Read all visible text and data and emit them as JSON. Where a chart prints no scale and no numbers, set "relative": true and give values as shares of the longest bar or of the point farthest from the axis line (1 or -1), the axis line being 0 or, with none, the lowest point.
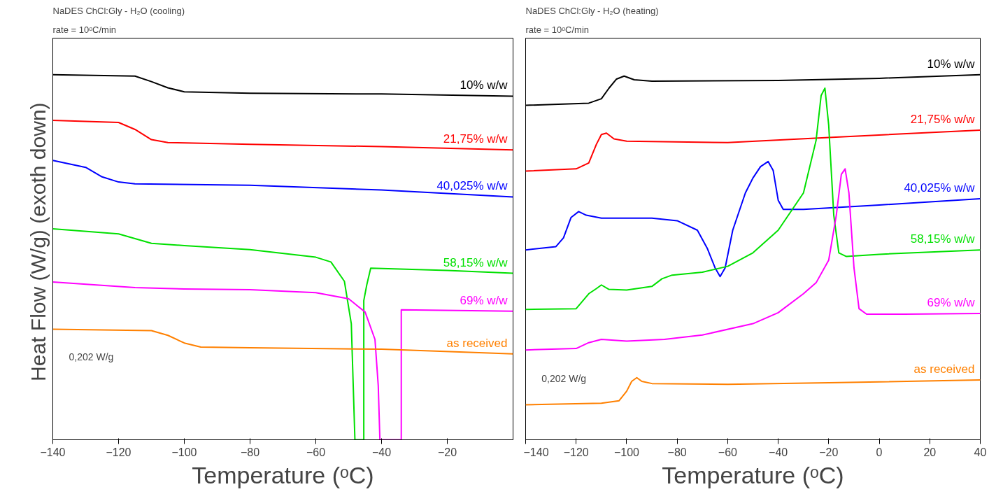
{
  "chart_data": [
    {
      "type": "line",
      "relative": true,
      "title": "NaDES ChCl:Gly - H₂O (cooling)",
      "subtitle": "rate = 10ᵒC/min",
      "xlabel": "Temperature (ᵒC)",
      "ylabel": "Heat Flow (W/g)  (exoth down)",
      "xlim": [
        -140,
        0
      ],
      "xticks": [
        -140,
        -120,
        -100,
        -80,
        -60,
        -40,
        -20
      ],
      "tick_labels": "x",
      "grid": false,
      "annotations": [
        "0,202 W/g"
      ],
      "series": [
        {
          "name": "10% w/w",
          "color": "#000000",
          "x": [
            -140,
            -115,
            -110,
            -105,
            -100,
            -80,
            -40,
            0
          ],
          "values": [
            1.0,
            0.996,
            0.981,
            0.964,
            0.953,
            0.949,
            0.947,
            0.941
          ]
        },
        {
          "name": "21,75% w/w",
          "color": "#ff0000",
          "x": [
            -140,
            -120,
            -115,
            -110,
            -105,
            -80,
            -40,
            0
          ],
          "values": [
            0.875,
            0.869,
            0.85,
            0.822,
            0.814,
            0.809,
            0.803,
            0.794
          ]
        },
        {
          "name": "40,025% w/w",
          "color": "#0000ff",
          "x": [
            -140,
            -130,
            -125,
            -120,
            -115,
            -80,
            -40,
            0
          ],
          "values": [
            0.765,
            0.746,
            0.72,
            0.706,
            0.701,
            0.697,
            0.684,
            0.665
          ]
        },
        {
          "name": "58,15% w/w",
          "color": "#00e000",
          "x": [
            -140,
            -120,
            -110,
            -100,
            -80,
            -60,
            -55.4,
            -51.3,
            -49.2,
            -48.1,
            -45.4,
            -45.4,
            -44.5,
            -43.3,
            -20,
            0
          ],
          "values": [
            0.578,
            0.564,
            0.538,
            0.532,
            0.521,
            0.5,
            0.487,
            0.434,
            0.318,
            0,
            0,
            0.381,
            0.424,
            0.47,
            0.464,
            0.456
          ]
        },
        {
          "name": "69% w/w",
          "color": "#ff00ff",
          "x": [
            -140,
            -115,
            -100,
            -80,
            -60,
            -50,
            -45,
            -42,
            -41,
            -40.5,
            -34,
            -34,
            0
          ],
          "values": [
            0.432,
            0.417,
            0.413,
            0.411,
            0.403,
            0.386,
            0.35,
            0.275,
            0.148,
            0,
            0,
            0.356,
            0.352
          ]
        },
        {
          "name": "as received",
          "color": "#ff8000",
          "x": [
            -140,
            -110,
            -105,
            -100,
            -95,
            -80,
            -40,
            0
          ],
          "values": [
            0.303,
            0.299,
            0.286,
            0.265,
            0.254,
            0.252,
            0.248,
            0.235
          ]
        }
      ]
    },
    {
      "type": "line",
      "relative": true,
      "title": "NaDES ChCl:Gly - H₂O (heating)",
      "subtitle": "rate = 10ᵒC/min",
      "xlabel": "Temperature (ᵒC)",
      "xlim": [
        -140,
        40
      ],
      "xticks": [
        -140,
        -120,
        -100,
        -80,
        -60,
        -40,
        -20,
        0,
        20,
        40
      ],
      "tick_labels": "x",
      "grid": false,
      "annotations": [
        "0,202 W/g"
      ],
      "series": [
        {
          "name": "10% w/w",
          "color": "#000000",
          "x": [
            -140,
            -115,
            -110,
            -107,
            -104,
            -101,
            -97,
            -90,
            -40,
            0,
            40
          ],
          "values": [
            0.916,
            0.922,
            0.934,
            0.963,
            0.988,
            0.996,
            0.986,
            0.982,
            0.984,
            0.99,
            1.0
          ]
        },
        {
          "name": "21,75% w/w",
          "color": "#ff0000",
          "x": [
            -140,
            -120,
            -115,
            -112,
            -110,
            -108,
            -105,
            -100,
            -60,
            -20,
            40
          ],
          "values": [
            0.736,
            0.742,
            0.758,
            0.809,
            0.836,
            0.84,
            0.824,
            0.818,
            0.814,
            0.828,
            0.848
          ]
        },
        {
          "name": "40,025% w/w",
          "color": "#0000ff",
          "x": [
            -140,
            -128,
            -125,
            -122,
            -119,
            -116,
            -110,
            -90,
            -80,
            -72,
            -68,
            -65,
            -63,
            -61,
            -58,
            -53,
            -50,
            -47,
            -44,
            -42,
            -40,
            -38,
            -30,
            0,
            40
          ],
          "values": [
            0.52,
            0.529,
            0.553,
            0.609,
            0.625,
            0.615,
            0.607,
            0.607,
            0.6,
            0.574,
            0.523,
            0.471,
            0.447,
            0.471,
            0.574,
            0.676,
            0.717,
            0.748,
            0.762,
            0.738,
            0.656,
            0.631,
            0.631,
            0.643,
            0.66
          ]
        },
        {
          "name": "58,15% w/w",
          "color": "#00e000",
          "x": [
            -140,
            -120,
            -115,
            -112,
            -110,
            -107,
            -100,
            -90,
            -86,
            -82,
            -70,
            -60,
            -50,
            -40,
            -30,
            -25,
            -23,
            -21.5,
            -20,
            -18,
            -16,
            -13,
            0,
            40
          ],
          "values": [
            0.357,
            0.359,
            0.4,
            0.414,
            0.424,
            0.412,
            0.41,
            0.42,
            0.441,
            0.451,
            0.459,
            0.475,
            0.512,
            0.574,
            0.676,
            0.82,
            0.943,
            0.963,
            0.861,
            0.615,
            0.512,
            0.502,
            0.508,
            0.52
          ]
        },
        {
          "name": "69% w/w",
          "color": "#ff00ff",
          "x": [
            -140,
            -120,
            -115,
            -110,
            -100,
            -85,
            -70,
            -50,
            -40,
            -30,
            -25,
            -20,
            -17,
            -15,
            -13.5,
            -12,
            -10,
            -8,
            -5,
            10,
            40
          ],
          "values": [
            0.246,
            0.25,
            0.266,
            0.275,
            0.27,
            0.275,
            0.287,
            0.318,
            0.348,
            0.4,
            0.43,
            0.492,
            0.615,
            0.727,
            0.742,
            0.676,
            0.471,
            0.359,
            0.344,
            0.344,
            0.346
          ]
        },
        {
          "name": "as received",
          "color": "#ff8000",
          "x": [
            -140,
            -110,
            -103,
            -100,
            -98,
            -96,
            -94,
            -90,
            -60,
            -20,
            40
          ],
          "values": [
            0.096,
            0.1,
            0.107,
            0.133,
            0.16,
            0.17,
            0.16,
            0.154,
            0.152,
            0.156,
            0.164
          ]
        }
      ]
    }
  ]
}
